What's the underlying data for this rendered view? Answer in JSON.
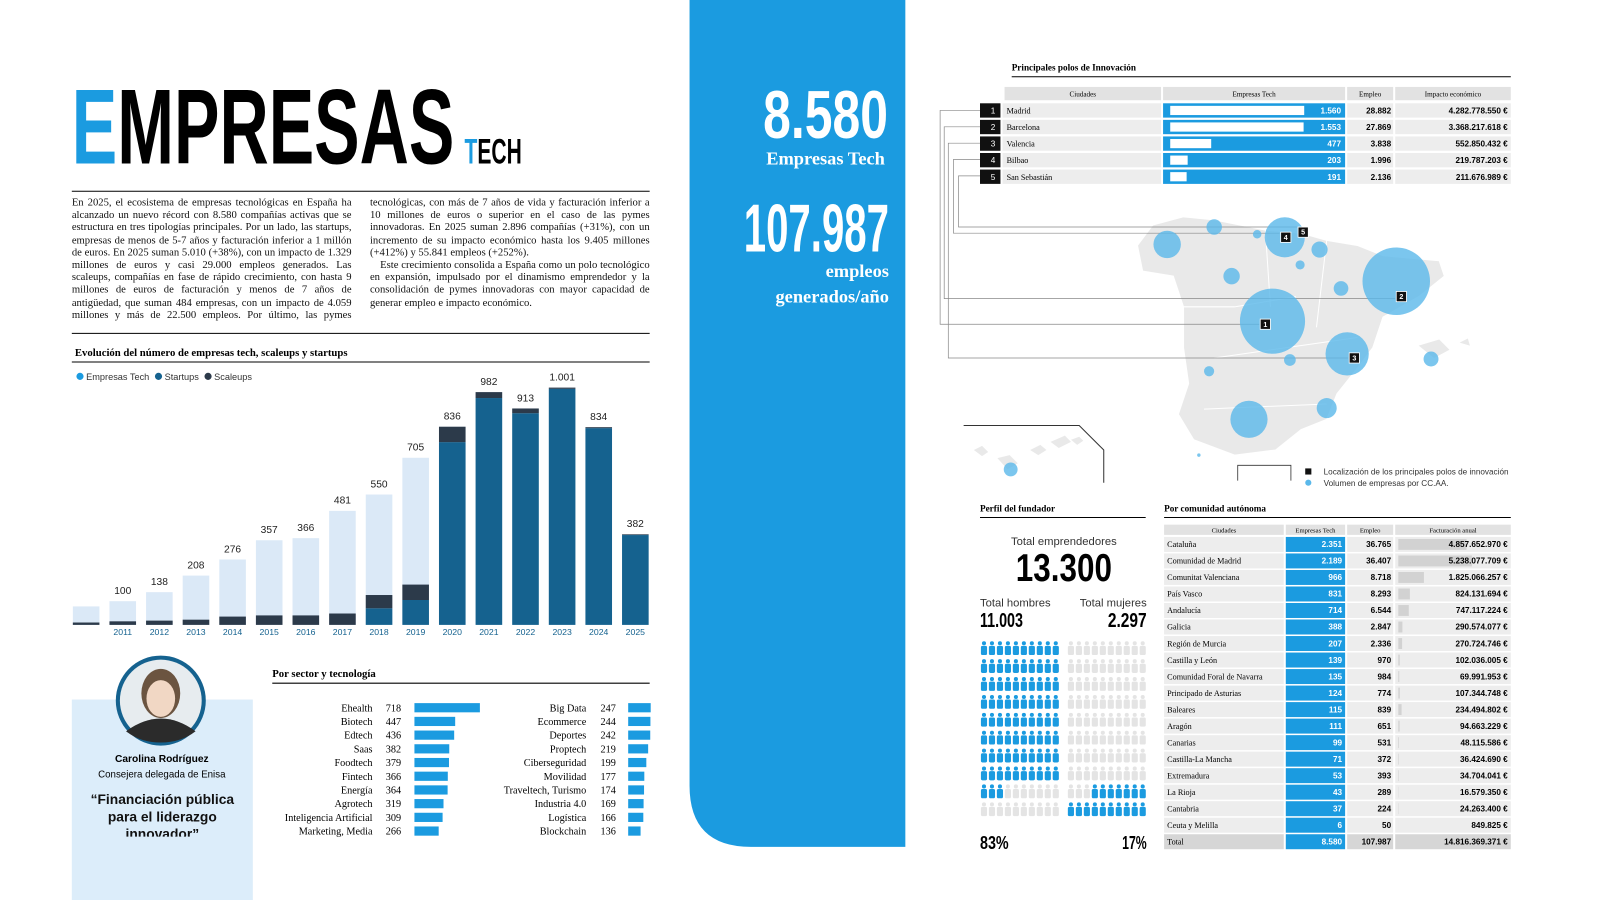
{
  "header": {
    "title_initial": "E",
    "title_rest": "MPRESAS",
    "tag_initial": "T",
    "tag_rest": "ECH"
  },
  "body": {
    "paragraphs": [
      "En 2025, el ecosistema de empresas tecnológicas en España ha alcanzado un nuevo récord con 8.580 compañías activas que se estructura en tres tipologías principales. Por un lado, las startups, empresas de menos de 5-7 años y facturación inferior a 1 millón de euros. En 2025 suman 5.010 (+38%), con un impacto de 1.329 millones de euros y casi 29.000 empleos generados. Las scaleups, compañías en fase de rápido crecimiento, con hasta 9 millones de euros de facturación y menos de 7 años de antigüedad, que suman 484 empresas, con un impacto de 4.059 millones y más de 22.500 empleos. Por último, las pymes tecnológicas, con más de 7 años de vida y facturación inferior a 10 millones de euros o superior en el caso de las pymes innovadoras. En 2025 suman 2.896 compañías (+31%), con un incremento de su impacto económico hasta los 9.405 millones (+412%) y 55.841 empleos (+252%).",
      "Este crecimiento consolida a España como un polo tecnológico en expansión, impulsado por el dinamismo emprendedor y la consolidación de pymes innovadoras con mayor capacidad de generar empleo e impacto económico."
    ]
  },
  "highlights": {
    "companies": "8.580",
    "companies_label": "Empresas Tech",
    "jobs": "107.987",
    "jobs_label": "empleos generados/año"
  },
  "quote": {
    "name": "Carolina Rodríguez",
    "role": "Consejera delegada de Enisa",
    "text": "“Financiación pública para el liderazgo innovador”"
  },
  "founder": {
    "title": "Perfil del fundador",
    "total_label": "Total emprendedores",
    "total": "13.300",
    "men_label": "Total hombres",
    "men": "11.003",
    "women_label": "Total mujeres",
    "women": "2.297",
    "men_share": {
      "value": 83,
      "label": "83%"
    },
    "women_share": {
      "value": 17,
      "label": "17%"
    }
  },
  "innovation_hubs": {
    "title": "Principales polos de Innovación",
    "columns": [
      "Ciudades",
      "Empresas Tech",
      "Empleo",
      "Impacto económico"
    ],
    "rows": [
      {
        "rank": "1",
        "city": "Madrid",
        "companies": {
          "value": 1560,
          "label": "1.560"
        },
        "jobs": "28.882",
        "impact": "4.282.778.550 €"
      },
      {
        "rank": "2",
        "city": "Barcelona",
        "companies": {
          "value": 1553,
          "label": "1.553"
        },
        "jobs": "27.869",
        "impact": "3.368.217.618 €"
      },
      {
        "rank": "3",
        "city": "Valencia",
        "companies": {
          "value": 477,
          "label": "477"
        },
        "jobs": "3.838",
        "impact": "552.850.432 €"
      },
      {
        "rank": "4",
        "city": "Bilbao",
        "companies": {
          "value": 203,
          "label": "203"
        },
        "jobs": "1.996",
        "impact": "219.787.203 €"
      },
      {
        "rank": "5",
        "city": "San Sebastián",
        "companies": {
          "value": 191,
          "label": "191"
        },
        "jobs": "2.136",
        "impact": "211.676.989 €"
      }
    ]
  },
  "map": {
    "legend": [
      "Localización de los principales polos de innovación",
      "Volumen de empresas por CC.AA."
    ]
  },
  "regions": {
    "title": "Por comunidad autónoma",
    "columns": [
      "Ciudades",
      "Empresas Tech",
      "Empleo",
      "Facturación anual"
    ],
    "rows": [
      {
        "name": "Cataluña",
        "companies": {
          "value": 2351,
          "label": "2.351"
        },
        "jobs": "36.765",
        "revenue": {
          "value": 4857652970,
          "label": "4.857.652.970 €"
        }
      },
      {
        "name": "Comunidad de Madrid",
        "companies": {
          "value": 2189,
          "label": "2.189"
        },
        "jobs": "36.407",
        "revenue": {
          "value": 5238077709,
          "label": "5.238.077.709 €"
        }
      },
      {
        "name": "Comunitat Valenciana",
        "companies": {
          "value": 966,
          "label": "966"
        },
        "jobs": "8.718",
        "revenue": {
          "value": 1825066257,
          "label": "1.825.066.257 €"
        }
      },
      {
        "name": "País Vasco",
        "companies": {
          "value": 831,
          "label": "831"
        },
        "jobs": "8.293",
        "revenue": {
          "value": 824131694,
          "label": "824.131.694 €"
        }
      },
      {
        "name": "Andalucía",
        "companies": {
          "value": 714,
          "label": "714"
        },
        "jobs": "6.544",
        "revenue": {
          "value": 747117224,
          "label": "747.117.224 €"
        }
      },
      {
        "name": "Galicia",
        "companies": {
          "value": 388,
          "label": "388"
        },
        "jobs": "2.847",
        "revenue": {
          "value": 290574077,
          "label": "290.574.077 €"
        }
      },
      {
        "name": "Región de Murcia",
        "companies": {
          "value": 207,
          "label": "207"
        },
        "jobs": "2.336",
        "revenue": {
          "value": 270724746,
          "label": "270.724.746 €"
        }
      },
      {
        "name": "Castilla y León",
        "companies": {
          "value": 139,
          "label": "139"
        },
        "jobs": "970",
        "revenue": {
          "value": 102036005,
          "label": "102.036.005 €"
        }
      },
      {
        "name": "Comunidad Foral de Navarra",
        "companies": {
          "value": 135,
          "label": "135"
        },
        "jobs": "984",
        "revenue": {
          "value": 69991953,
          "label": "69.991.953 €"
        }
      },
      {
        "name": "Principado de Asturias",
        "companies": {
          "value": 124,
          "label": "124"
        },
        "jobs": "774",
        "revenue": {
          "value": 107344748,
          "label": "107.344.748 €"
        }
      },
      {
        "name": "Baleares",
        "companies": {
          "value": 115,
          "label": "115"
        },
        "jobs": "839",
        "revenue": {
          "value": 234494802,
          "label": "234.494.802 €"
        }
      },
      {
        "name": "Aragón",
        "companies": {
          "value": 111,
          "label": "111"
        },
        "jobs": "651",
        "revenue": {
          "value": 94663229,
          "label": "94.663.229 €"
        }
      },
      {
        "name": "Canarias",
        "companies": {
          "value": 99,
          "label": "99"
        },
        "jobs": "531",
        "revenue": {
          "value": 48115586,
          "label": "48.115.586 €"
        }
      },
      {
        "name": "Castilla-La Mancha",
        "companies": {
          "value": 71,
          "label": "71"
        },
        "jobs": "372",
        "revenue": {
          "value": 36424690,
          "label": "36.424.690 €"
        }
      },
      {
        "name": "Extremadura",
        "companies": {
          "value": 53,
          "label": "53"
        },
        "jobs": "393",
        "revenue": {
          "value": 34704041,
          "label": "34.704.041 €"
        }
      },
      {
        "name": "La Rioja",
        "companies": {
          "value": 43,
          "label": "43"
        },
        "jobs": "289",
        "revenue": {
          "value": 16579350,
          "label": "16.579.350 €"
        }
      },
      {
        "name": "Cantabria",
        "companies": {
          "value": 37,
          "label": "37"
        },
        "jobs": "224",
        "revenue": {
          "value": 24263400,
          "label": "24.263.400 €"
        }
      },
      {
        "name": "Ceuta y Melilla",
        "companies": {
          "value": 6,
          "label": "6"
        },
        "jobs": "50",
        "revenue": {
          "value": 849825,
          "label": "849.825 €"
        }
      }
    ],
    "total": {
      "name": "Total",
      "companies": "8.580",
      "jobs": "107.987",
      "revenue": "14.816.369.371 €"
    }
  },
  "chart_data": [
    {
      "type": "bar",
      "title": "Evolución del número de empresas tech, scaleups y startups",
      "categories": [
        null,
        "2011",
        "2012",
        "2013",
        "2014",
        "2015",
        "2016",
        "2017",
        "2018",
        "2019",
        "2020",
        "2021",
        "2022",
        "2023",
        "2024",
        "2025"
      ],
      "series": [
        {
          "name": "Empresas Tech",
          "color": "#dbe9f7",
          "values": [
            78,
            100,
            138,
            208,
            276,
            357,
            366,
            481,
            550,
            705,
            836,
            982,
            913,
            1001,
            834,
            382
          ],
          "value_labels": [
            null,
            "100",
            "138",
            "208",
            "276",
            "357",
            "366",
            "481",
            "550",
            "705",
            "836",
            "982",
            "913",
            "1.001",
            "834",
            "382"
          ]
        },
        {
          "name": "Startups",
          "color": "#15628f",
          "values": [
            0,
            0,
            0,
            0,
            0,
            0,
            0,
            0,
            70,
            105,
            771,
            957,
            893,
            996,
            830,
            379
          ]
        },
        {
          "name": "Scaleups",
          "color": "#2c3a4a",
          "values": [
            10,
            15,
            18,
            22,
            35,
            40,
            40,
            48,
            56,
            65,
            65,
            25,
            20,
            5,
            4,
            3
          ]
        }
      ]
    },
    {
      "type": "hbar",
      "title": "Por sector y tecnología",
      "color": "#1b9be0",
      "categories": [
        "Ehealth",
        "Biotech",
        "Edtech",
        "Saas",
        "Foodtech",
        "Fintech",
        "Energía",
        "Agrotech",
        "Inteligencia Artificial",
        "Marketing, Media",
        "Big Data",
        "Ecommerce",
        "Deportes",
        "Proptech",
        "Ciberseguridad",
        "Movilidad",
        "Traveltech, Turismo",
        "Industria 4.0",
        "Logística",
        "Blockchain"
      ],
      "values": [
        718,
        447,
        436,
        382,
        379,
        366,
        364,
        319,
        309,
        266,
        247,
        244,
        242,
        219,
        199,
        177,
        174,
        169,
        166,
        136
      ]
    }
  ]
}
